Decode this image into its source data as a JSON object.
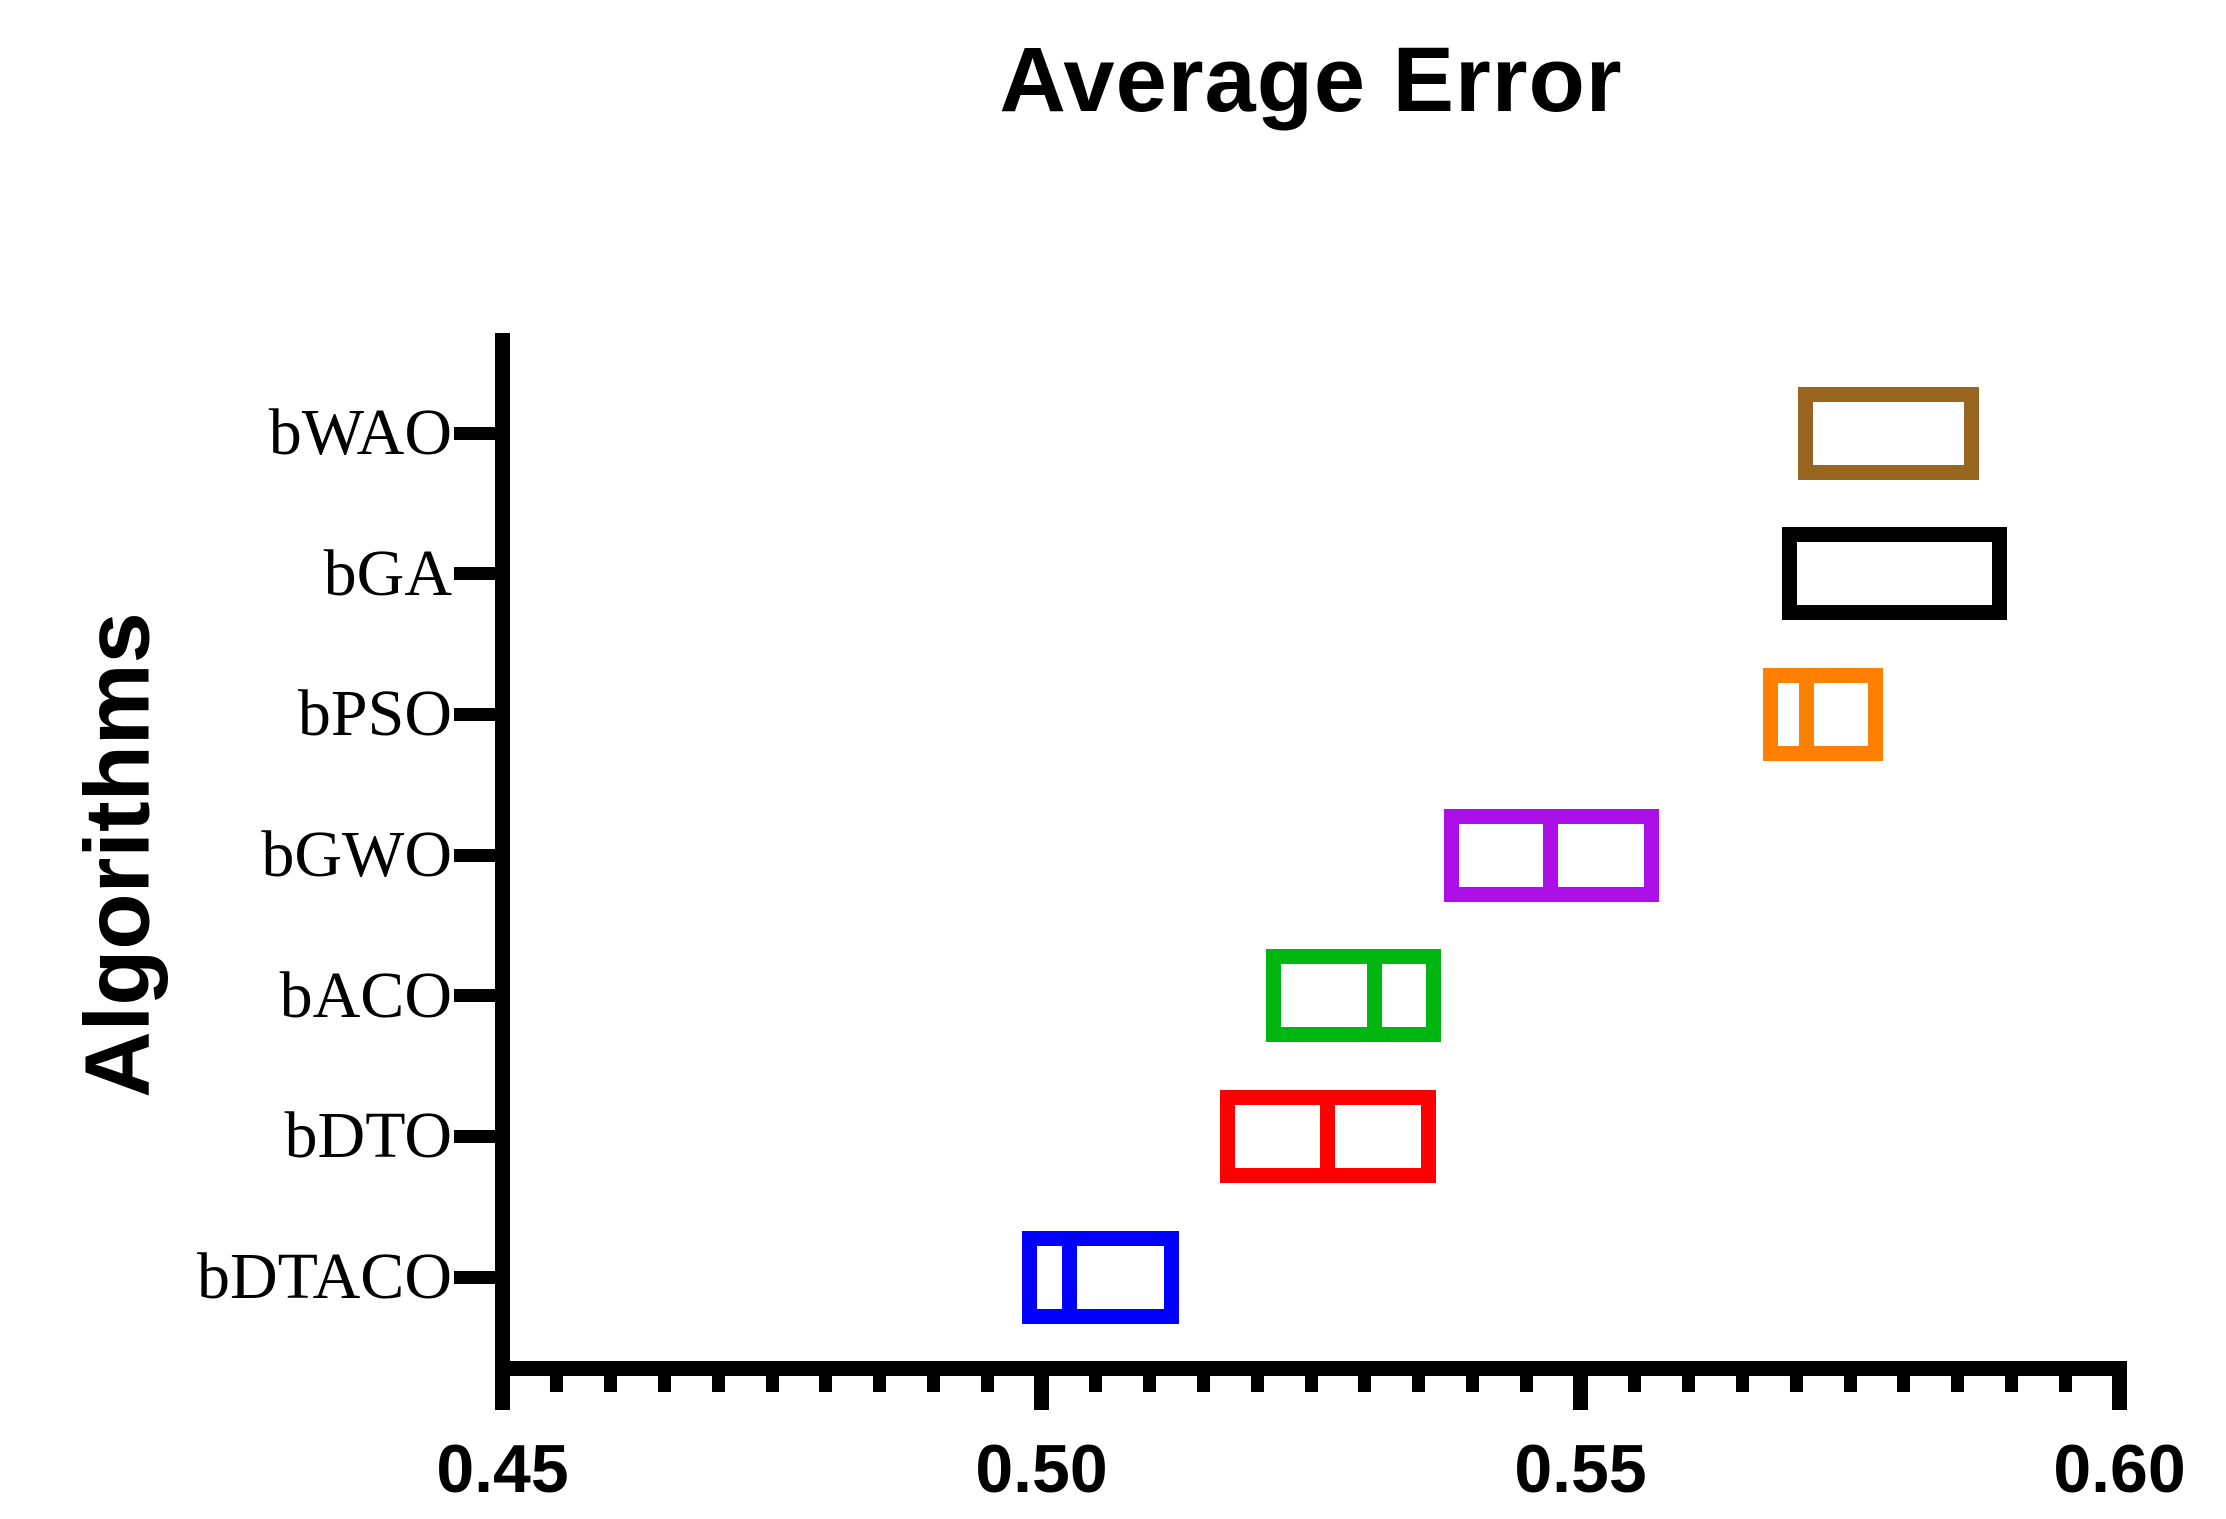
{
  "figure": {
    "title": "Average Error",
    "y_axis_title": "Algorithms",
    "background": "#ffffff",
    "axis_color": "#000000"
  },
  "chart_data": {
    "type": "box",
    "orientation": "horizontal",
    "title": "Average Error",
    "xlabel": "",
    "ylabel": "Algorithms",
    "xlim": [
      0.45,
      0.6
    ],
    "x_major_ticks": [
      0.45,
      0.5,
      0.55,
      0.6
    ],
    "x_tick_labels": [
      "0.45",
      "0.50",
      "0.55",
      "0.60"
    ],
    "x_minor_tick_step": 0.005,
    "grid": false,
    "legend": false,
    "categories": [
      "bWAO",
      "bGA",
      "bPSO",
      "bGWO",
      "bACO",
      "bDTO",
      "bDTACO"
    ],
    "series": [
      {
        "name": "bWAO",
        "color": "#996620",
        "box_low": 0.5702,
        "median": null,
        "box_high": 0.587
      },
      {
        "name": "bGA",
        "color": "#000000",
        "box_low": 0.5687,
        "median": null,
        "box_high": 0.5896
      },
      {
        "name": "bPSO",
        "color": "#FF8000",
        "box_low": 0.5669,
        "median": 0.571,
        "box_high": 0.5781
      },
      {
        "name": "bGWO",
        "color": "#AC0FE8",
        "box_low": 0.5373,
        "median": 0.5472,
        "box_high": 0.5573
      },
      {
        "name": "bACO",
        "color": "#00B712",
        "box_low": 0.5208,
        "median": 0.5309,
        "box_high": 0.5371
      },
      {
        "name": "bDTO",
        "color": "#FF0000",
        "box_low": 0.5166,
        "median": 0.5265,
        "box_high": 0.5366
      },
      {
        "name": "bDTACO",
        "color": "#0000FF",
        "box_low": 0.4982,
        "median": 0.5026,
        "box_high": 0.5128
      }
    ]
  }
}
